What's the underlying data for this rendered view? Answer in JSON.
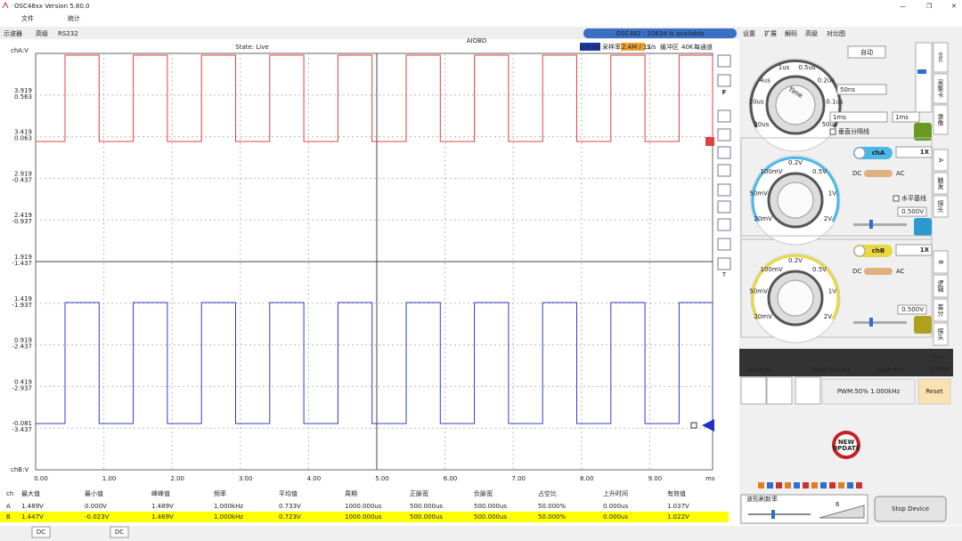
{
  "window": {
    "title": "OSC48xx  Version 5.80.0",
    "menu": [
      "文件",
      "统计"
    ]
  },
  "tabs": [
    "示波器",
    "高级",
    "RS232"
  ],
  "watermark": "AIOBD",
  "scope": {
    "state": "State: Live",
    "device_status": "OSC482 : 20634 is available",
    "bits": "8.0 bit",
    "sample_rate_label": "采样率",
    "sample_rate": "2.4M / 12",
    "sample_rate_unit": "S/s",
    "buffer_label": "缓冲区",
    "buffer": "40K",
    "buffer_unit": "每通道",
    "y_axis_a_label": "chA:V",
    "y_axis_b_label": "chB:V",
    "y_labels_a": [
      "3.919",
      "3.419",
      "2.919",
      "2.419",
      "1.919",
      "1.419",
      "0.919",
      "0.419",
      "-0.081"
    ],
    "y_labels_b": [
      "0.563",
      "0.063",
      "-0.437",
      "-0.937",
      "-1.437",
      "-1.937",
      "-2.437",
      "-2.937",
      "-3.437"
    ],
    "x_labels": [
      "0.00",
      "1.00",
      "2.00",
      "3.00",
      "4.00",
      "5.00",
      "6.00",
      "7.00",
      "8.00",
      "9.00"
    ],
    "x_unit": "ms",
    "toolbar_labels": [
      "F",
      "T"
    ]
  },
  "measurements": {
    "headers": [
      "ch",
      "最大值",
      "最小值",
      "峰峰值",
      "频率",
      "平均值",
      "周期",
      "正脉宽",
      "负脉宽",
      "占空比",
      "上升时间",
      "有效值"
    ],
    "rows": [
      [
        "A",
        "1.489V",
        "0.000V",
        "1.489V",
        "1.000kHz",
        "0.733V",
        "1000.000us",
        "500.000us",
        "500.000us",
        "50.000%",
        "0.000us",
        "1.037V"
      ],
      [
        "B",
        "1.447V",
        "-0.023V",
        "1.469V",
        "1.000kHz",
        "0.723V",
        "1000.000us",
        "500.000us",
        "500.000us",
        "50.000%",
        "0.000us",
        "1.022V"
      ]
    ]
  },
  "status_bar": [
    "DC",
    "DC"
  ],
  "panel": {
    "tabs": [
      "设置",
      "扩展",
      "解码",
      "高级",
      "对比图"
    ],
    "auto": "自动",
    "timebase": "50ns",
    "time_select": "1ms",
    "time_value": "1ms",
    "vertical_divider": "垂直分隔线",
    "time_dial": {
      "label": "Time",
      "marks": [
        "20us",
        "10us",
        "4us",
        "1us",
        "0.5us",
        "0.2us",
        "0.1us",
        "50us"
      ]
    },
    "side_osc": [
      "osc",
      "采集卡",
      "录像"
    ],
    "side_a": [
      "A",
      "触发",
      "探头"
    ],
    "side_b": [
      "B",
      "逻辑",
      "差分",
      "探头"
    ],
    "channel_a": {
      "name": "chA",
      "probe": "1X",
      "dc": "DC",
      "ac": "AC",
      "baseline": "水平基线",
      "volts": "0.500V",
      "marks": [
        "20mV",
        "50mV",
        "100mV",
        "0.2V",
        "0.5V",
        "1V",
        "2V"
      ]
    },
    "channel_b": {
      "name": "chB",
      "probe": "1X",
      "dc": "DC",
      "ac": "AC",
      "volts": "0.500V",
      "marks": [
        "20mV",
        "50mV",
        "100mV",
        "0.2V",
        "0.5V",
        "1V",
        "2V"
      ]
    },
    "modes": [
      "Normal",
      "Peak-Detect",
      "High-Res"
    ],
    "interp": [
      "Sine",
      "Linear"
    ],
    "pwm": "PWM:50% 1.000kHz",
    "reset": "Reset",
    "update": [
      "NEW",
      "UPDATE"
    ],
    "refresh_label": "波形刷新率",
    "refresh_value": "6",
    "stop": "Stop Device"
  }
}
